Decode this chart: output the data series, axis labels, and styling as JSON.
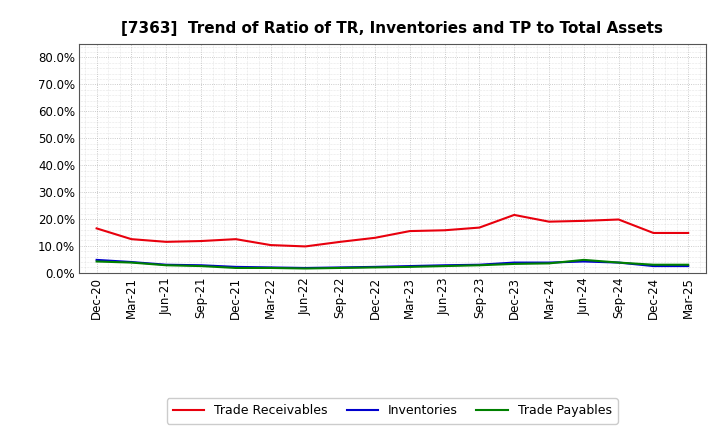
{
  "title": "[7363]  Trend of Ratio of TR, Inventories and TP to Total Assets",
  "x_labels": [
    "Dec-20",
    "Mar-21",
    "Jun-21",
    "Sep-21",
    "Dec-21",
    "Mar-22",
    "Jun-22",
    "Sep-22",
    "Dec-22",
    "Mar-23",
    "Jun-23",
    "Sep-23",
    "Dec-23",
    "Mar-24",
    "Jun-24",
    "Sep-24",
    "Dec-24",
    "Mar-25"
  ],
  "trade_receivables": [
    0.165,
    0.125,
    0.115,
    0.118,
    0.125,
    0.103,
    0.098,
    0.115,
    0.13,
    0.155,
    0.158,
    0.168,
    0.215,
    0.19,
    0.193,
    0.198,
    0.148,
    0.148
  ],
  "inventories": [
    0.048,
    0.04,
    0.03,
    0.028,
    0.022,
    0.02,
    0.018,
    0.02,
    0.022,
    0.025,
    0.028,
    0.03,
    0.038,
    0.038,
    0.042,
    0.038,
    0.025,
    0.025
  ],
  "trade_payables": [
    0.042,
    0.038,
    0.028,
    0.025,
    0.018,
    0.018,
    0.016,
    0.018,
    0.02,
    0.022,
    0.025,
    0.028,
    0.033,
    0.035,
    0.048,
    0.038,
    0.03,
    0.03
  ],
  "tr_color": "#e8000d",
  "inv_color": "#0000cd",
  "tp_color": "#008000",
  "ylim": [
    0.0,
    0.85
  ],
  "yticks": [
    0.0,
    0.1,
    0.2,
    0.3,
    0.4,
    0.5,
    0.6,
    0.7,
    0.8
  ],
  "ytick_labels": [
    "0.0%",
    "10.0%",
    "20.0%",
    "30.0%",
    "40.0%",
    "50.0%",
    "60.0%",
    "70.0%",
    "80.0%"
  ],
  "legend_labels": [
    "Trade Receivables",
    "Inventories",
    "Trade Payables"
  ],
  "bg_color": "#ffffff",
  "plot_bg_color": "#ffffff",
  "grid_color": "#bbbbbb",
  "line_width": 1.5,
  "title_fontsize": 11,
  "tick_fontsize": 8.5,
  "legend_fontsize": 9
}
